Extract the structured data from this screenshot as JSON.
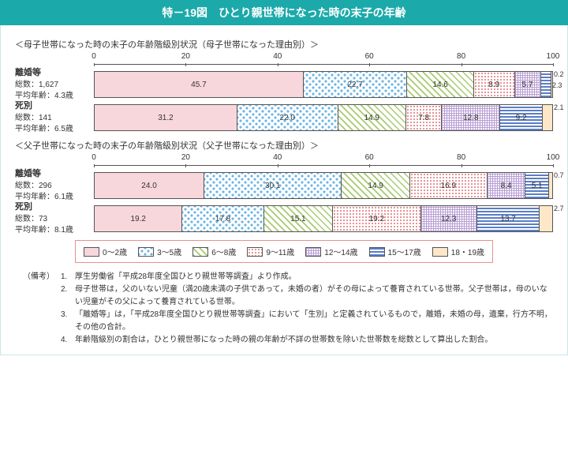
{
  "title": "特－19図　ひとり親世帯になった時の末子の年齢",
  "sections": [
    {
      "title": "＜母子世帯になった時の末子の年齢階級別状況（母子世帯になった理由別）＞",
      "rows": [
        {
          "cat": "離婚等",
          "line1": "総数：1,627",
          "line2": "平均年齢：4.3歳",
          "values": [
            45.7,
            22.7,
            14.6,
            8.9,
            5.7,
            2.3,
            0.2
          ]
        },
        {
          "cat": "死別",
          "line1": "総数：141",
          "line2": "平均年齢：6.5歳",
          "values": [
            31.2,
            22.0,
            14.9,
            7.8,
            12.8,
            9.2,
            2.1
          ]
        }
      ]
    },
    {
      "title": "＜父子世帯になった時の末子の年齢階級別状況（父子世帯になった理由別）＞",
      "rows": [
        {
          "cat": "離婚等",
          "line1": "総数：296",
          "line2": "平均年齢：6.1歳",
          "values": [
            24.0,
            30.1,
            14.9,
            16.9,
            8.4,
            5.1,
            0.7
          ]
        },
        {
          "cat": "死別",
          "line1": "総数：73",
          "line2": "平均年齢：8.1歳",
          "values": [
            19.2,
            17.8,
            15.1,
            19.2,
            12.3,
            13.7,
            2.7
          ]
        }
      ]
    }
  ],
  "axis_ticks": [
    0,
    20,
    40,
    60,
    80,
    100
  ],
  "axis_unit": "(%)",
  "legend": [
    {
      "label": "0～2歳",
      "pat": "pat-pink"
    },
    {
      "label": "3～5歳",
      "pat": "pat-blue"
    },
    {
      "label": "6～8歳",
      "pat": "pat-green"
    },
    {
      "label": "9～11歳",
      "pat": "pat-red"
    },
    {
      "label": "12～14歳",
      "pat": "pat-purple"
    },
    {
      "label": "15～17歳",
      "pat": "pat-dblue"
    },
    {
      "label": "18・19歳",
      "pat": "pat-orange"
    }
  ],
  "notes_label": "（備考）",
  "notes": [
    "厚生労働省「平成28年度全国ひとり親世帯等調査」より作成。",
    "母子世帯は，父のいない児童（満20歳未満の子供であって，未婚の者）がその母によって養育されている世帯。父子世帯は，母のいない児童がその父によって養育されている世帯。",
    "「離婚等」は，「平成28年度全国ひとり親世帯等調査」において「生別」と定義されているもので，離婚，未婚の母，遺棄，行方不明，その他の合計。",
    "年齢階級別の割合は，ひとり親世帯になった時の親の年齢が不詳の世帯数を除いた世帯数を総数として算出した割合。"
  ],
  "patterns": [
    "pat-pink",
    "pat-blue",
    "pat-green",
    "pat-red",
    "pat-purple",
    "pat-dblue",
    "pat-orange"
  ]
}
